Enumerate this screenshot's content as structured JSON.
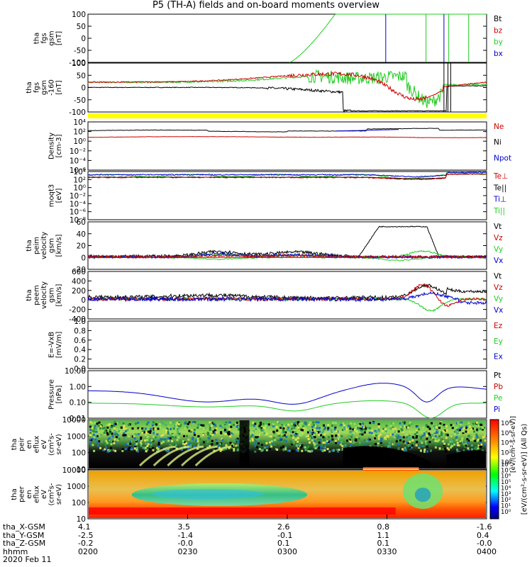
{
  "title": "P5 (TH-A) fields and on-board moments overview",
  "colors": {
    "black": "#000000",
    "red": "#cc0000",
    "green": "#22cc22",
    "blue": "#0000cc",
    "yellow": "#ffff00",
    "orange": "#ff9900"
  },
  "chart_data": [
    {
      "type": "line",
      "ylabel": [
        "tha",
        "fgs",
        "gsm",
        "[nT]"
      ],
      "ylim": [
        -100,
        100
      ],
      "yticks": [
        "100",
        "50",
        "0",
        "-50",
        "-100"
      ],
      "legend": [
        {
          "label": "Bt",
          "color": "#000000"
        },
        {
          "label": "bz",
          "color": "#cc0000"
        },
        {
          "label": "by",
          "color": "#22cc22"
        },
        {
          "label": "bx",
          "color": "#0000cc"
        }
      ]
    },
    {
      "type": "line",
      "ylabel": [
        "tha",
        "fgs",
        "gsm",
        "-160",
        "[nT]"
      ],
      "ylim": [
        -125,
        100
      ],
      "yticks": [
        "100",
        "50",
        "0",
        "-50",
        "-100"
      ],
      "legend": []
    },
    {
      "type": "line",
      "ylabel": [
        "Density",
        "[cm-3]"
      ],
      "yscale": "log",
      "yticks": [
        "10⁴",
        "10²",
        "10⁰",
        "10⁻²",
        "10⁻⁴",
        "10⁻⁶"
      ],
      "legend": [
        {
          "label": "Ne",
          "color": "#cc0000"
        },
        {
          "label": "Ni",
          "color": "#000000"
        },
        {
          "label": "Npot",
          "color": "#0000cc"
        }
      ]
    },
    {
      "type": "line",
      "ylabel": [
        "moqt3",
        "[eV]"
      ],
      "yscale": "log",
      "yticks": [
        "10⁴",
        "10²",
        "10⁰",
        "10⁻²",
        "10⁻⁴",
        "10⁻⁶",
        "10⁻⁸"
      ],
      "legend": [
        {
          "label": "Te⊥",
          "color": "#cc0000"
        },
        {
          "label": "Te||",
          "color": "#000000"
        },
        {
          "label": "Ti⊥",
          "color": "#0000cc"
        },
        {
          "label": "Ti||",
          "color": "#22cc22"
        }
      ]
    },
    {
      "type": "line",
      "ylabel": [
        "tha",
        "peim",
        "velocity",
        "gsm",
        "[km/s]"
      ],
      "ylim": [
        -20,
        60
      ],
      "yticks": [
        "60",
        "40",
        "20",
        "0",
        "-20"
      ],
      "legend": [
        {
          "label": "Vt",
          "color": "#000000"
        },
        {
          "label": "Vz",
          "color": "#cc0000"
        },
        {
          "label": "Vy",
          "color": "#22cc22"
        },
        {
          "label": "Vx",
          "color": "#0000cc"
        }
      ]
    },
    {
      "type": "line",
      "ylabel": [
        "tha",
        "peem",
        "velocity",
        "gsm",
        "[km/s]"
      ],
      "ylim": [
        -400,
        600
      ],
      "yticks": [
        "600",
        "400",
        "200",
        "0",
        "-200",
        "-400"
      ],
      "legend": [
        {
          "label": "Vt",
          "color": "#000000"
        },
        {
          "label": "Vz",
          "color": "#cc0000"
        },
        {
          "label": "Vy",
          "color": "#22cc22"
        },
        {
          "label": "Vx",
          "color": "#0000cc"
        }
      ]
    },
    {
      "type": "line",
      "ylabel": [
        "E=-VxB",
        "[mV/m]"
      ],
      "ylim": [
        0,
        1
      ],
      "yticks": [
        "1.0",
        "0.8",
        "0.6",
        "0.4",
        "0.2",
        "0.0"
      ],
      "legend": [
        {
          "label": "Ez",
          "color": "#cc0000"
        },
        {
          "label": "Ey",
          "color": "#22cc22"
        },
        {
          "label": "Ex",
          "color": "#0000cc"
        }
      ]
    },
    {
      "type": "line",
      "ylabel": [
        "Pressure",
        "[nPa]"
      ],
      "yscale": "log",
      "yticks": [
        "10.00",
        "1.00",
        "0.10",
        "0.01"
      ],
      "legend": [
        {
          "label": "Pt",
          "color": "#000000"
        },
        {
          "label": "Pb",
          "color": "#cc0000"
        },
        {
          "label": "Pe",
          "color": "#22cc22"
        },
        {
          "label": "Pi",
          "color": "#0000cc"
        }
      ]
    },
    {
      "type": "heatmap",
      "ylabel": [
        "tha",
        "peir",
        "en",
        "eflux",
        "eV",
        "(cm²s-",
        "sr-eV)"
      ],
      "yscale": "log",
      "yticks": [
        "10000",
        "1000",
        "100",
        "10"
      ],
      "legend": []
    },
    {
      "type": "heatmap",
      "ylabel": [
        "tha",
        "peer",
        "en",
        "eflux",
        "eV",
        "(cm²s-",
        "sr-eV)"
      ],
      "yscale": "log",
      "yticks": [
        "10000",
        "1000",
        "100",
        "10"
      ],
      "legend": []
    }
  ],
  "colorbar": {
    "label": "[eV/(cm²-s-sr-eV)] (All Qs)",
    "label_top": "[eV/(cm²-s-sr-eV)]",
    "ticks_top": [
      "10⁸",
      "10⁶",
      "10⁴",
      "10²",
      "10⁰"
    ],
    "ticks_bottom": [
      "10⁸",
      "10⁷",
      "10⁶",
      "10⁵",
      "10⁴",
      "10³",
      "10²",
      "10¹",
      "10⁰"
    ]
  },
  "xaxis": {
    "ticks": [
      "0200",
      "0230",
      "0300",
      "0330",
      "0400"
    ],
    "rows": [
      {
        "label": "tha_X-GSM",
        "values": [
          "4.1",
          "3.5",
          "2.6",
          "0.8",
          "-1.6"
        ]
      },
      {
        "label": "tha_Y-GSM",
        "values": [
          "-2.5",
          "-1.4",
          "-0.1",
          "1.1",
          "0.4"
        ]
      },
      {
        "label": "tha_Z-GSM",
        "values": [
          "-0.2",
          "-0.0",
          "0.1",
          "0.1",
          "-0.0"
        ]
      },
      {
        "label": "hhmm",
        "values": [
          "0200",
          "0230",
          "0300",
          "0330",
          "0400"
        ]
      }
    ],
    "date": "2020 Feb 11"
  }
}
